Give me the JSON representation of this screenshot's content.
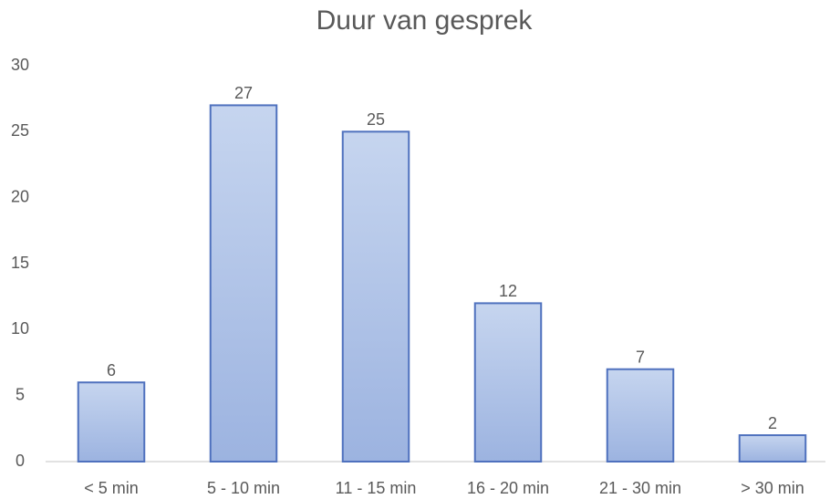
{
  "chart_data": {
    "type": "bar",
    "title": "Duur van gesprek",
    "categories": [
      "< 5 min",
      "5 - 10 min",
      "11 - 15 min",
      "16 - 20 min",
      "21 - 30 min",
      "> 30 min"
    ],
    "values": [
      6,
      27,
      25,
      12,
      7,
      2
    ],
    "color": "#4f71be",
    "ylim": [
      0,
      30
    ],
    "yticks": [
      0,
      5,
      10,
      15,
      20,
      25,
      30
    ],
    "grid": false
  }
}
